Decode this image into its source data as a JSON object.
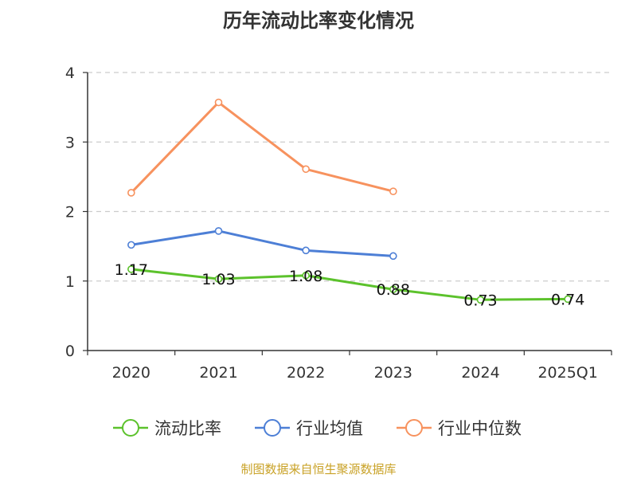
{
  "chart_data": {
    "type": "line",
    "title": "历年流动比率变化情况",
    "categories": [
      "2020",
      "2021",
      "2022",
      "2023",
      "2024",
      "2025Q1"
    ],
    "ylim": [
      0,
      4
    ],
    "yticks": [
      0,
      1,
      2,
      3,
      4
    ],
    "grid": true,
    "legend_position": "bottom",
    "series": [
      {
        "name": "流动比率",
        "color": "#5cc22c",
        "values": [
          1.17,
          1.03,
          1.08,
          0.88,
          0.73,
          0.74
        ],
        "labels": [
          "1.17",
          "1.03",
          "1.08",
          "0.88",
          "0.73",
          "0.74"
        ]
      },
      {
        "name": "行业均值",
        "color": "#4d7fd6",
        "values": [
          1.52,
          1.72,
          1.44,
          1.36,
          null,
          null
        ]
      },
      {
        "name": "行业中位数",
        "color": "#f7925e",
        "values": [
          2.27,
          3.57,
          2.61,
          2.29,
          null,
          null
        ]
      }
    ]
  },
  "source": "制图数据来自恒生聚源数据库"
}
